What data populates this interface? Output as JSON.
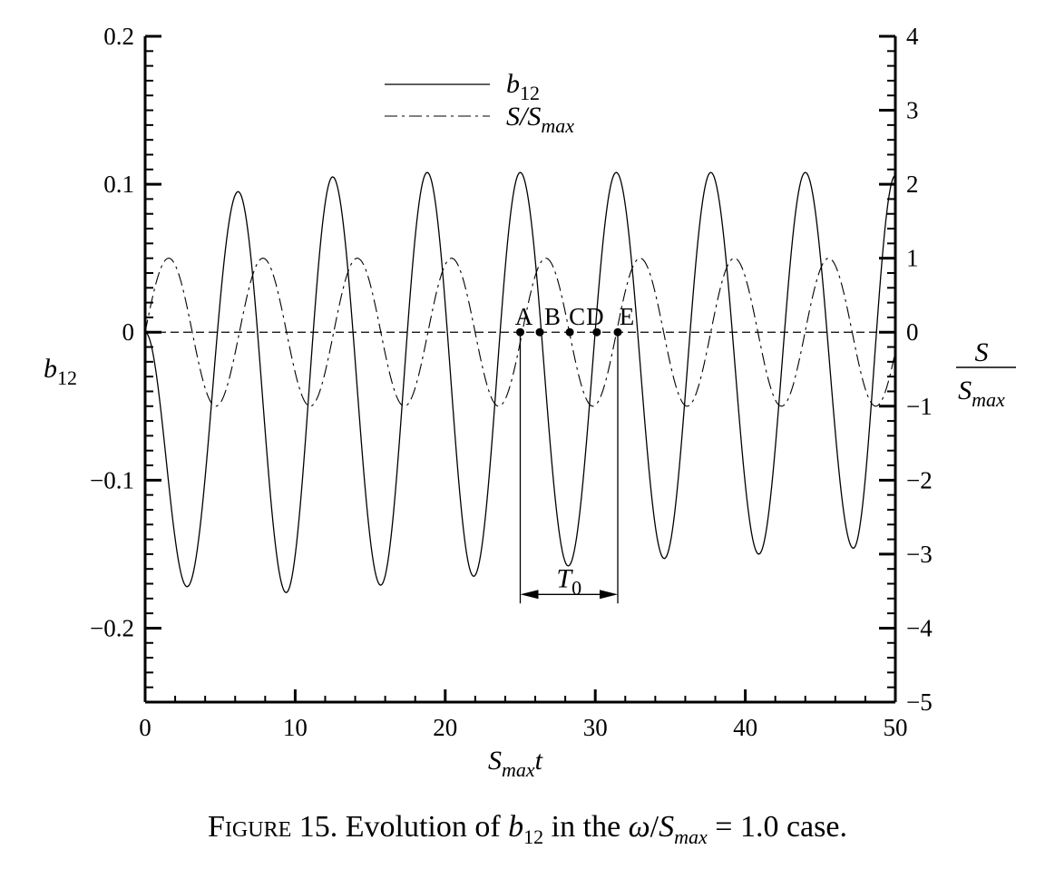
{
  "chart_data": {
    "type": "line",
    "xlabel": {
      "base": "S",
      "sub": "max",
      "suffix": "t"
    },
    "ylabel_left": {
      "base": "b",
      "sub": "12"
    },
    "ylabel_right": {
      "numerator": "S",
      "denominator_base": "S",
      "denominator_sub": "max"
    },
    "xlim": [
      0,
      50
    ],
    "ylim_left": [
      -0.25,
      0.2
    ],
    "ylim_right": [
      -5,
      4
    ],
    "x_ticks": [
      "0",
      "10",
      "20",
      "30",
      "40",
      "50"
    ],
    "y_ticks_left": [
      "0.2",
      "0.1",
      "0",
      "−0.1",
      "−0.2"
    ],
    "y_ticks_right": [
      "4",
      "3",
      "2",
      "1",
      "0",
      "−1",
      "−2",
      "−3",
      "−4",
      "−5"
    ],
    "legend": {
      "position": "top-center",
      "entries": [
        {
          "base": "b",
          "sub": "12",
          "style": "solid"
        },
        {
          "base": "S/S",
          "sub": "max",
          "style": "dash-dot"
        }
      ]
    },
    "series": [
      {
        "axis": "left",
        "style": "solid",
        "extrema": [
          [
            0,
            0.0
          ],
          [
            2.8,
            -0.172
          ],
          [
            6.2,
            0.095
          ],
          [
            9.4,
            -0.176
          ],
          [
            12.5,
            0.105
          ],
          [
            15.7,
            -0.171
          ],
          [
            18.8,
            0.108
          ],
          [
            21.9,
            -0.165
          ],
          [
            25.0,
            0.108
          ],
          [
            28.2,
            -0.158
          ],
          [
            31.4,
            0.108
          ],
          [
            34.6,
            -0.153
          ],
          [
            37.7,
            0.108
          ],
          [
            40.9,
            -0.15
          ],
          [
            44.0,
            0.108
          ],
          [
            47.2,
            -0.146
          ],
          [
            50.0,
            0.106
          ]
        ]
      },
      {
        "axis": "right",
        "style": "dash-dot",
        "amplitude": 1,
        "omega": 1,
        "function": "sin"
      },
      {
        "axis": "left",
        "style": "dashed",
        "value": 0
      }
    ],
    "points": [
      {
        "label": "A",
        "x": 25.0,
        "y": 0
      },
      {
        "label": "B",
        "x": 26.3,
        "y": 0
      },
      {
        "label": "C",
        "x": 28.3,
        "y": 0
      },
      {
        "label": "D",
        "x": 30.1,
        "y": 0
      },
      {
        "label": "E",
        "x": 31.5,
        "y": 0
      }
    ],
    "period_marker": {
      "label_base": "T",
      "label_sub": "0",
      "x_start": 25.0,
      "x_end": 31.5,
      "y": -0.176
    }
  },
  "caption": {
    "figure": "Figure",
    "number": "15.",
    "text_before": " Evolution of ",
    "var_base": "b",
    "var_sub": "12",
    "text_middle": " in the ",
    "ratio_num": "ω",
    "ratio_slash": "/",
    "ratio_den_base": "S",
    "ratio_den_sub": "max",
    "equals": " = 1.0",
    "text_after": " case."
  }
}
